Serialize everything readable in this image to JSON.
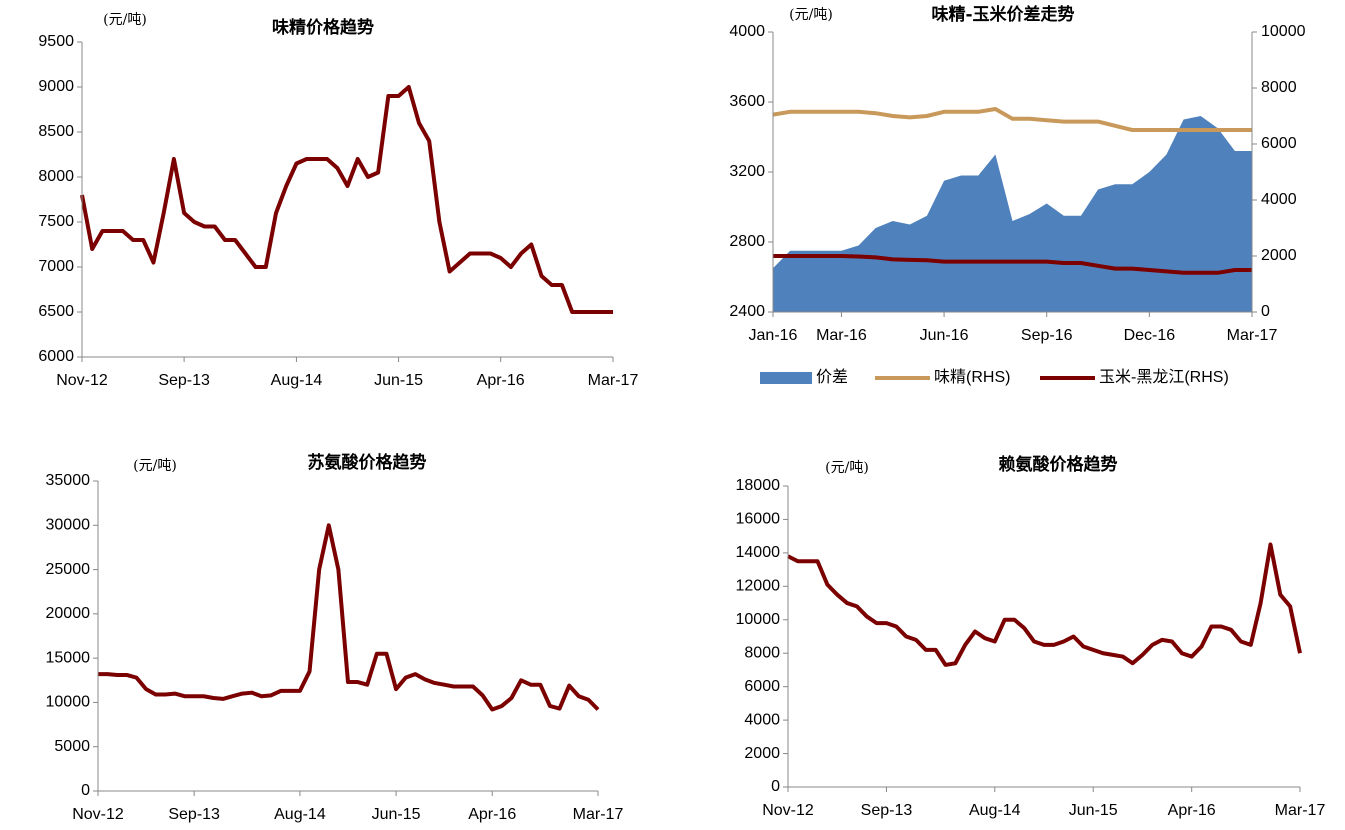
{
  "chart_data": [
    {
      "type": "line",
      "title": "味精价格趋势",
      "ylabel": "(元/吨)",
      "categories": [
        "Nov-12",
        null,
        null,
        null,
        null,
        null,
        null,
        null,
        null,
        null,
        "Sep-13",
        null,
        null,
        null,
        null,
        null,
        null,
        null,
        null,
        null,
        null,
        "Aug-14",
        null,
        null,
        null,
        null,
        null,
        null,
        null,
        null,
        null,
        "Jun-15",
        null,
        null,
        null,
        null,
        null,
        null,
        null,
        null,
        null,
        "Apr-16",
        null,
        null,
        null,
        null,
        null,
        null,
        null,
        null,
        null,
        null,
        "Mar-17"
      ],
      "series": [
        {
          "color": "#7b0000",
          "values": [
            7800,
            7200,
            7400,
            7400,
            7400,
            7300,
            7300,
            7050,
            7600,
            8200,
            7600,
            7500,
            7450,
            7450,
            7300,
            7300,
            7150,
            7000,
            7000,
            7600,
            7900,
            8150,
            8200,
            8200,
            8200,
            8100,
            7900,
            8200,
            8000,
            8050,
            8900,
            8900,
            9000,
            8600,
            8400,
            7500,
            6950,
            7050,
            7150,
            7150,
            7150,
            7100,
            7000,
            7150,
            7250,
            6900,
            6800,
            6800,
            6500,
            6500,
            6500,
            6500,
            6500
          ]
        }
      ],
      "ylim": [
        6000,
        9500
      ],
      "yticks": [
        6000,
        6500,
        7000,
        7500,
        8000,
        8500,
        9000,
        9500
      ]
    },
    {
      "type": "line",
      "title": "味精-玉米价差走势",
      "ylabel": "(元/吨)",
      "categories": [
        "Jan-16",
        null,
        null,
        null,
        "Mar-16",
        null,
        null,
        null,
        null,
        null,
        "Jun-16",
        null,
        null,
        null,
        null,
        null,
        "Sep-16",
        null,
        null,
        null,
        null,
        null,
        "Dec-16",
        null,
        null,
        null,
        null,
        null,
        "Mar-17"
      ],
      "series": [
        {
          "name": "价差",
          "type": "area",
          "color": "#4f81bd",
          "values": [
            2650,
            2750,
            2750,
            2750,
            2750,
            2780,
            2880,
            2920,
            2900,
            2950,
            3150,
            3180,
            3180,
            3300,
            2920,
            2960,
            3020,
            2950,
            2950,
            3100,
            3130,
            3130,
            3200,
            3300,
            3500,
            3520,
            3450,
            3320,
            3320
          ]
        },
        {
          "name": "味精(RHS)",
          "type": "line",
          "axis": "y2",
          "color": "#c8995a",
          "values": [
            7050,
            7150,
            7150,
            7150,
            7150,
            7150,
            7100,
            7000,
            6950,
            7000,
            7150,
            7150,
            7150,
            7250,
            6900,
            6900,
            6850,
            6800,
            6800,
            6800,
            6650,
            6500,
            6500,
            6500,
            6500,
            6500,
            6500,
            6500,
            6500
          ]
        },
        {
          "name": "玉米-黑龙江(RHS)",
          "type": "line",
          "axis": "y2",
          "color": "#7b0000",
          "values": [
            2000,
            2000,
            2000,
            2000,
            2000,
            1980,
            1950,
            1880,
            1860,
            1850,
            1800,
            1800,
            1800,
            1800,
            1800,
            1800,
            1800,
            1750,
            1750,
            1650,
            1550,
            1550,
            1500,
            1450,
            1400,
            1400,
            1400,
            1500,
            1500
          ]
        }
      ],
      "ylim": [
        2400,
        4000
      ],
      "yticks": [
        2400,
        2800,
        3200,
        3600,
        4000
      ],
      "y2lim": [
        0,
        10000
      ],
      "y2ticks": [
        0,
        2000,
        4000,
        6000,
        8000,
        10000
      ],
      "legend": "bottom"
    },
    {
      "type": "line",
      "title": "苏氨酸价格趋势",
      "ylabel": "(元/吨)",
      "categories": [
        "Nov-12",
        null,
        null,
        null,
        null,
        null,
        null,
        null,
        null,
        null,
        "Sep-13",
        null,
        null,
        null,
        null,
        null,
        null,
        null,
        null,
        null,
        null,
        "Aug-14",
        null,
        null,
        null,
        null,
        null,
        null,
        null,
        null,
        null,
        "Jun-15",
        null,
        null,
        null,
        null,
        null,
        null,
        null,
        null,
        null,
        "Apr-16",
        null,
        null,
        null,
        null,
        null,
        null,
        null,
        null,
        null,
        null,
        "Mar-17"
      ],
      "series": [
        {
          "color": "#7b0000",
          "values": [
            13200,
            13200,
            13100,
            13100,
            12800,
            11500,
            10900,
            10900,
            11000,
            10700,
            10700,
            10700,
            10500,
            10400,
            10700,
            11000,
            11100,
            10700,
            10800,
            11300,
            11300,
            11300,
            13500,
            25000,
            30000,
            25000,
            12300,
            12300,
            12000,
            15500,
            15500,
            11500,
            12800,
            13200,
            12600,
            12200,
            12000,
            11800,
            11800,
            11800,
            10800,
            9200,
            9600,
            10500,
            12500,
            12000,
            12000,
            9600,
            9300,
            11900,
            10700,
            10300,
            9200
          ]
        }
      ],
      "ylim": [
        0,
        35000
      ],
      "yticks": [
        0,
        5000,
        10000,
        15000,
        20000,
        25000,
        30000,
        35000
      ]
    },
    {
      "type": "line",
      "title": "赖氨酸价格趋势",
      "ylabel": "(元/吨)",
      "categories": [
        "Nov-12",
        null,
        null,
        null,
        null,
        null,
        null,
        null,
        null,
        null,
        "Sep-13",
        null,
        null,
        null,
        null,
        null,
        null,
        null,
        null,
        null,
        null,
        "Aug-14",
        null,
        null,
        null,
        null,
        null,
        null,
        null,
        null,
        null,
        "Jun-15",
        null,
        null,
        null,
        null,
        null,
        null,
        null,
        null,
        null,
        "Apr-16",
        null,
        null,
        null,
        null,
        null,
        null,
        null,
        null,
        null,
        null,
        "Mar-17"
      ],
      "series": [
        {
          "color": "#7b0000",
          "values": [
            13800,
            13500,
            13500,
            13500,
            12100,
            11500,
            11000,
            10800,
            10200,
            9800,
            9800,
            9600,
            9000,
            8800,
            8200,
            8200,
            7300,
            7400,
            8500,
            9300,
            8900,
            8700,
            10000,
            10000,
            9500,
            8700,
            8500,
            8500,
            8700,
            9000,
            8400,
            8200,
            8000,
            7900,
            7800,
            7400,
            7900,
            8500,
            8800,
            8700,
            8000,
            7800,
            8400,
            9600,
            9600,
            9400,
            8700,
            8500,
            11000,
            14500,
            11500,
            10800,
            8000
          ]
        }
      ],
      "ylim": [
        0,
        18000
      ],
      "yticks": [
        0,
        2000,
        4000,
        6000,
        8000,
        10000,
        12000,
        14000,
        16000,
        18000
      ]
    }
  ]
}
